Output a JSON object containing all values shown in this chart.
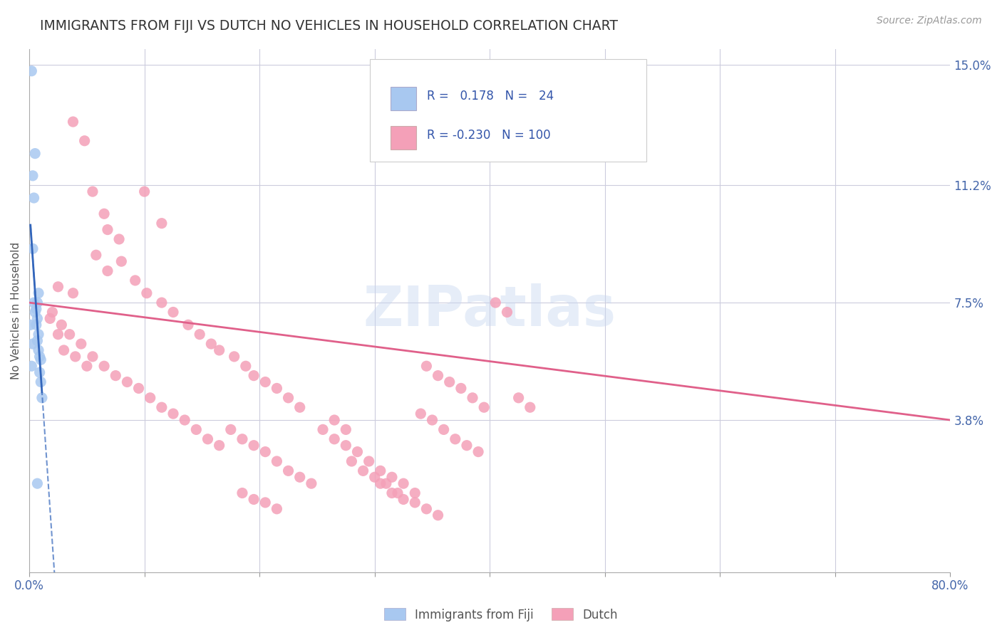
{
  "title": "IMMIGRANTS FROM FIJI VS DUTCH NO VEHICLES IN HOUSEHOLD CORRELATION CHART",
  "source": "Source: ZipAtlas.com",
  "ylabel": "No Vehicles in Household",
  "xlim": [
    0.0,
    0.8
  ],
  "ylim": [
    -0.01,
    0.155
  ],
  "ytick_labels_right": [
    "15.0%",
    "11.2%",
    "7.5%",
    "3.8%"
  ],
  "ytick_vals_right": [
    0.15,
    0.112,
    0.075,
    0.038
  ],
  "fiji_color": "#A8C8F0",
  "dutch_color": "#F4A0B8",
  "fiji_trend_color": "#3366BB",
  "dutch_trend_color": "#E0608A",
  "watermark": "ZIPatlas",
  "fiji_points": [
    [
      0.002,
      0.148
    ],
    [
      0.005,
      0.122
    ],
    [
      0.003,
      0.115
    ],
    [
      0.004,
      0.108
    ],
    [
      0.003,
      0.092
    ],
    [
      0.008,
      0.078
    ],
    [
      0.001,
      0.068
    ],
    [
      0.003,
      0.062
    ],
    [
      0.002,
      0.055
    ],
    [
      0.004,
      0.075
    ],
    [
      0.006,
      0.073
    ],
    [
      0.007,
      0.075
    ],
    [
      0.005,
      0.072
    ],
    [
      0.007,
      0.07
    ],
    [
      0.006,
      0.068
    ],
    [
      0.008,
      0.065
    ],
    [
      0.007,
      0.063
    ],
    [
      0.008,
      0.06
    ],
    [
      0.009,
      0.058
    ],
    [
      0.01,
      0.057
    ],
    [
      0.009,
      0.053
    ],
    [
      0.01,
      0.05
    ],
    [
      0.011,
      0.045
    ],
    [
      0.007,
      0.018
    ]
  ],
  "dutch_points": [
    [
      0.038,
      0.132
    ],
    [
      0.048,
      0.126
    ],
    [
      0.055,
      0.11
    ],
    [
      0.065,
      0.103
    ],
    [
      0.068,
      0.098
    ],
    [
      0.078,
      0.095
    ],
    [
      0.058,
      0.09
    ],
    [
      0.068,
      0.085
    ],
    [
      0.025,
      0.08
    ],
    [
      0.038,
      0.078
    ],
    [
      0.1,
      0.11
    ],
    [
      0.115,
      0.1
    ],
    [
      0.08,
      0.088
    ],
    [
      0.092,
      0.082
    ],
    [
      0.102,
      0.078
    ],
    [
      0.115,
      0.075
    ],
    [
      0.125,
      0.072
    ],
    [
      0.138,
      0.068
    ],
    [
      0.148,
      0.065
    ],
    [
      0.158,
      0.062
    ],
    [
      0.165,
      0.06
    ],
    [
      0.178,
      0.058
    ],
    [
      0.188,
      0.055
    ],
    [
      0.195,
      0.052
    ],
    [
      0.205,
      0.05
    ],
    [
      0.215,
      0.048
    ],
    [
      0.225,
      0.045
    ],
    [
      0.235,
      0.042
    ],
    [
      0.018,
      0.07
    ],
    [
      0.025,
      0.065
    ],
    [
      0.03,
      0.06
    ],
    [
      0.04,
      0.058
    ],
    [
      0.05,
      0.055
    ],
    [
      0.02,
      0.072
    ],
    [
      0.028,
      0.068
    ],
    [
      0.035,
      0.065
    ],
    [
      0.045,
      0.062
    ],
    [
      0.055,
      0.058
    ],
    [
      0.065,
      0.055
    ],
    [
      0.075,
      0.052
    ],
    [
      0.085,
      0.05
    ],
    [
      0.095,
      0.048
    ],
    [
      0.105,
      0.045
    ],
    [
      0.115,
      0.042
    ],
    [
      0.125,
      0.04
    ],
    [
      0.135,
      0.038
    ],
    [
      0.145,
      0.035
    ],
    [
      0.155,
      0.032
    ],
    [
      0.165,
      0.03
    ],
    [
      0.175,
      0.035
    ],
    [
      0.185,
      0.032
    ],
    [
      0.195,
      0.03
    ],
    [
      0.205,
      0.028
    ],
    [
      0.215,
      0.025
    ],
    [
      0.225,
      0.022
    ],
    [
      0.235,
      0.02
    ],
    [
      0.245,
      0.018
    ],
    [
      0.255,
      0.035
    ],
    [
      0.265,
      0.032
    ],
    [
      0.275,
      0.03
    ],
    [
      0.285,
      0.028
    ],
    [
      0.295,
      0.025
    ],
    [
      0.305,
      0.022
    ],
    [
      0.315,
      0.02
    ],
    [
      0.325,
      0.018
    ],
    [
      0.335,
      0.015
    ],
    [
      0.345,
      0.055
    ],
    [
      0.355,
      0.052
    ],
    [
      0.365,
      0.05
    ],
    [
      0.375,
      0.048
    ],
    [
      0.385,
      0.045
    ],
    [
      0.395,
      0.042
    ],
    [
      0.405,
      0.075
    ],
    [
      0.415,
      0.072
    ],
    [
      0.185,
      0.015
    ],
    [
      0.195,
      0.013
    ],
    [
      0.205,
      0.012
    ],
    [
      0.215,
      0.01
    ],
    [
      0.305,
      0.018
    ],
    [
      0.315,
      0.015
    ],
    [
      0.325,
      0.013
    ],
    [
      0.335,
      0.012
    ],
    [
      0.345,
      0.01
    ],
    [
      0.355,
      0.008
    ],
    [
      0.265,
      0.038
    ],
    [
      0.275,
      0.035
    ],
    [
      0.34,
      0.04
    ],
    [
      0.35,
      0.038
    ],
    [
      0.36,
      0.035
    ],
    [
      0.37,
      0.032
    ],
    [
      0.38,
      0.03
    ],
    [
      0.39,
      0.028
    ],
    [
      0.28,
      0.025
    ],
    [
      0.29,
      0.022
    ],
    [
      0.3,
      0.02
    ],
    [
      0.31,
      0.018
    ],
    [
      0.32,
      0.015
    ],
    [
      0.425,
      0.045
    ],
    [
      0.435,
      0.042
    ]
  ]
}
